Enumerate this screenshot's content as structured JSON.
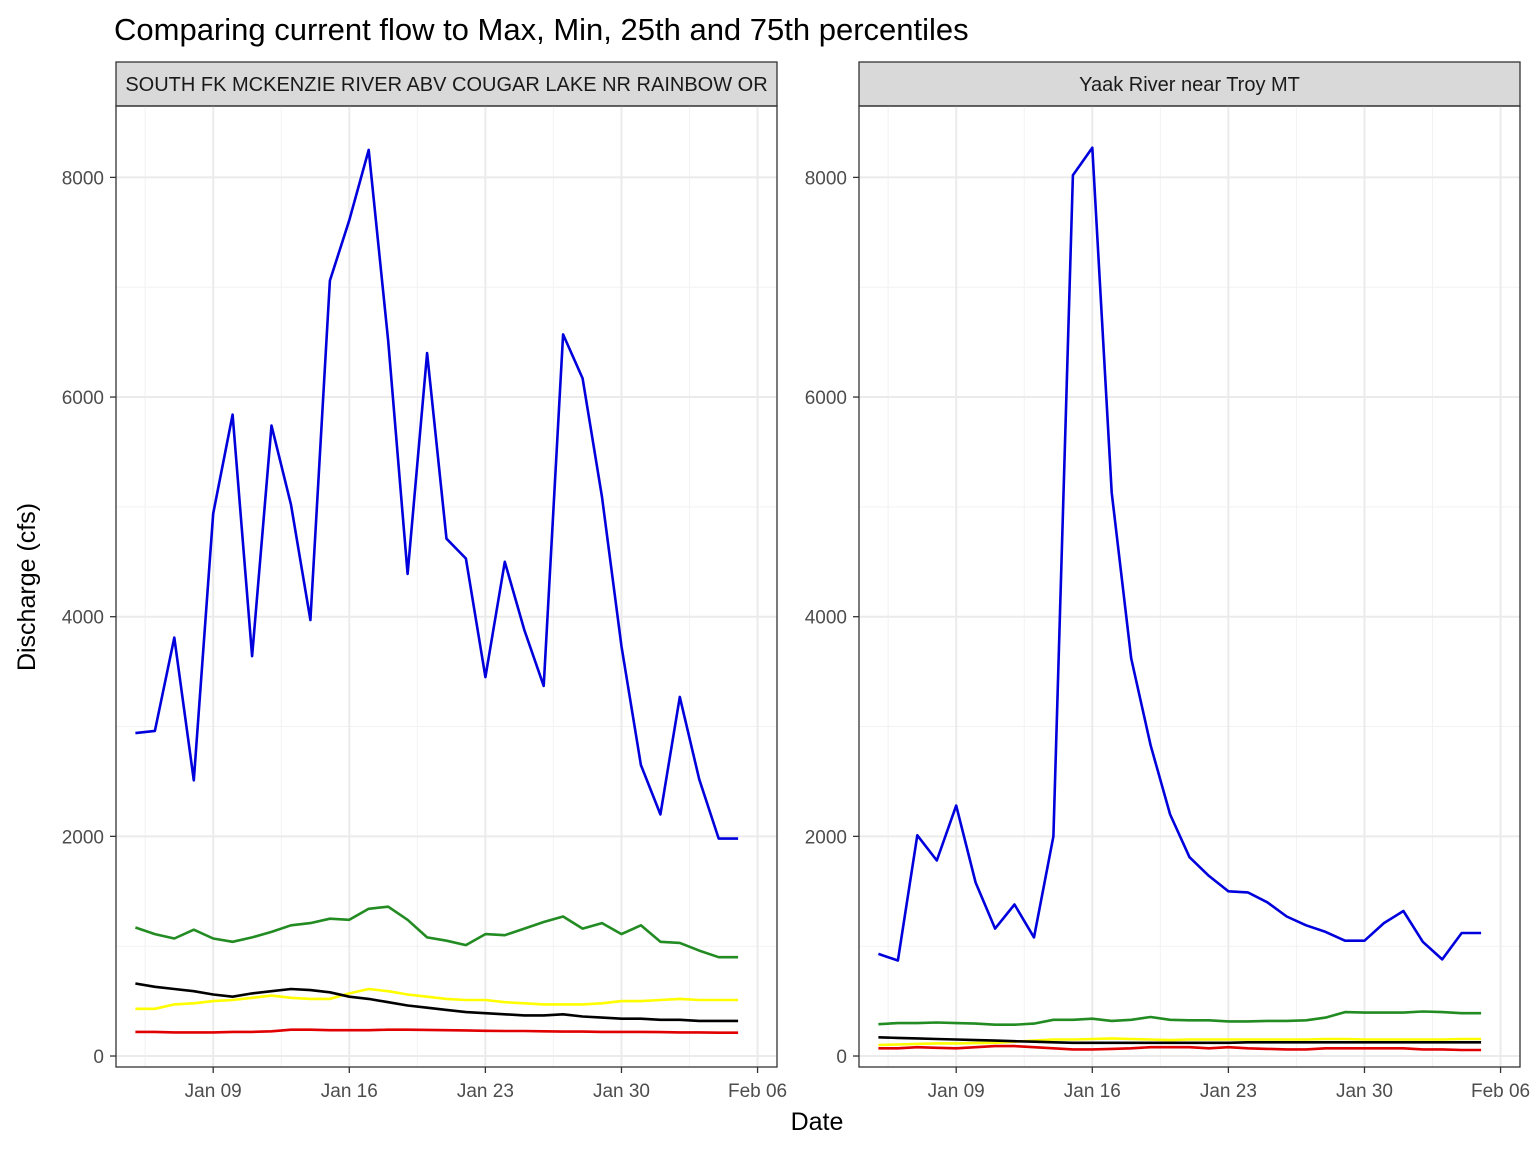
{
  "chart_data": {
    "type": "line",
    "title": "Comparing current flow to Max, Min, 25th and 75th percentiles",
    "xlabel": "Date",
    "ylabel": "Discharge (cfs)",
    "x_tick_labels": [
      "Jan 09",
      "Jan 16",
      "Jan 23",
      "Jan 30",
      "Feb 06"
    ],
    "y_tick_labels": [
      "0",
      "2000",
      "4000",
      "6000",
      "8000"
    ],
    "x_ticks": [
      "2025-01-09",
      "2025-01-16",
      "2025-01-23",
      "2025-01-30",
      "2025-02-06"
    ],
    "y_ticks": [
      0,
      2000,
      4000,
      6000,
      8000
    ],
    "xlim": [
      "2025-01-04",
      "2025-02-07"
    ],
    "grid": true,
    "legend": "none",
    "x": [
      "2025-01-05",
      "2025-01-06",
      "2025-01-07",
      "2025-01-08",
      "2025-01-09",
      "2025-01-10",
      "2025-01-11",
      "2025-01-12",
      "2025-01-13",
      "2025-01-14",
      "2025-01-15",
      "2025-01-16",
      "2025-01-17",
      "2025-01-18",
      "2025-01-19",
      "2025-01-20",
      "2025-01-21",
      "2025-01-22",
      "2025-01-23",
      "2025-01-24",
      "2025-01-25",
      "2025-01-26",
      "2025-01-27",
      "2025-01-28",
      "2025-01-29",
      "2025-01-30",
      "2025-01-31",
      "2025-02-01",
      "2025-02-02",
      "2025-02-03",
      "2025-02-04",
      "2025-02-05"
    ],
    "panels": [
      {
        "strip": "SOUTH FK MCKENZIE RIVER ABV COUGAR LAKE NR RAINBOW OR",
        "ylim": [
          -100,
          8650
        ],
        "series": [
          {
            "color": "#0000dd",
            "values": [
              2940,
              2960,
              3810,
              2510,
              4940,
              5840,
              3640,
              5740,
              5020,
              3970,
              7060,
              7610,
              8250,
              6510,
              4390,
              6400,
              4710,
              4530,
              3450,
              4500,
              3880,
              3370,
              6570,
              6170,
              5090,
              3730,
              2650,
              2200,
              3270,
              2520,
              1980,
              1980
            ]
          },
          {
            "color": "#228b22",
            "values": [
              1170,
              1110,
              1070,
              1150,
              1070,
              1040,
              1080,
              1130,
              1190,
              1210,
              1250,
              1240,
              1340,
              1360,
              1240,
              1080,
              1050,
              1010,
              1110,
              1100,
              1160,
              1220,
              1270,
              1160,
              1210,
              1110,
              1190,
              1040,
              1030,
              960,
              900,
              900
            ]
          },
          {
            "color": "#ffff00",
            "values": [
              430,
              430,
              470,
              480,
              500,
              510,
              530,
              550,
              530,
              520,
              520,
              570,
              610,
              590,
              560,
              540,
              520,
              510,
              510,
              490,
              480,
              470,
              470,
              470,
              480,
              500,
              500,
              510,
              520,
              510,
              510,
              510
            ]
          },
          {
            "color": "#000000",
            "values": [
              660,
              630,
              610,
              590,
              560,
              540,
              570,
              590,
              610,
              600,
              580,
              540,
              520,
              490,
              460,
              440,
              420,
              400,
              390,
              380,
              370,
              370,
              380,
              360,
              350,
              340,
              340,
              330,
              330,
              320,
              320,
              320
            ]
          },
          {
            "color": "#e00000",
            "values": [
              220,
              220,
              215,
              215,
              215,
              220,
              220,
              225,
              240,
              240,
              235,
              235,
              235,
              240,
              240,
              238,
              235,
              233,
              230,
              228,
              228,
              225,
              222,
              222,
              220,
              220,
              220,
              218,
              215,
              215,
              212,
              212
            ]
          }
        ]
      },
      {
        "strip": "Yaak River near Troy MT",
        "ylim": [
          -100,
          8650
        ],
        "series": [
          {
            "color": "#0000dd",
            "values": [
              930,
              870,
              2010,
              1780,
              2280,
              1580,
              1160,
              1380,
              1080,
              2000,
              8020,
              8270,
              5130,
              3620,
              2830,
              2200,
              1810,
              1640,
              1500,
              1490,
              1400,
              1270,
              1190,
              1130,
              1050,
              1050,
              1210,
              1320,
              1040,
              880,
              1120,
              1120
            ]
          },
          {
            "color": "#228b22",
            "values": [
              290,
              300,
              300,
              305,
              300,
              295,
              285,
              285,
              295,
              330,
              330,
              340,
              320,
              330,
              355,
              330,
              325,
              325,
              315,
              315,
              320,
              320,
              325,
              350,
              400,
              395,
              395,
              395,
              405,
              400,
              390,
              390
            ]
          },
          {
            "color": "#ffff00",
            "values": [
              100,
              105,
              110,
              115,
              115,
              118,
              120,
              130,
              140,
              150,
              150,
              155,
              160,
              155,
              150,
              145,
              150,
              150,
              150,
              150,
              150,
              150,
              150,
              155,
              155,
              150,
              150,
              150,
              150,
              150,
              155,
              155
            ]
          },
          {
            "color": "#000000",
            "values": [
              170,
              165,
              160,
              155,
              150,
              145,
              140,
              135,
              130,
              125,
              120,
              120,
              120,
              120,
              120,
              120,
              120,
              120,
              120,
              125,
              125,
              125,
              125,
              125,
              125,
              125,
              125,
              125,
              125,
              125,
              125,
              125
            ]
          },
          {
            "color": "#e00000",
            "values": [
              70,
              70,
              80,
              75,
              70,
              80,
              90,
              90,
              80,
              70,
              60,
              60,
              65,
              70,
              80,
              80,
              80,
              70,
              80,
              70,
              65,
              60,
              60,
              70,
              70,
              70,
              70,
              70,
              60,
              60,
              55,
              55
            ]
          }
        ]
      }
    ]
  }
}
